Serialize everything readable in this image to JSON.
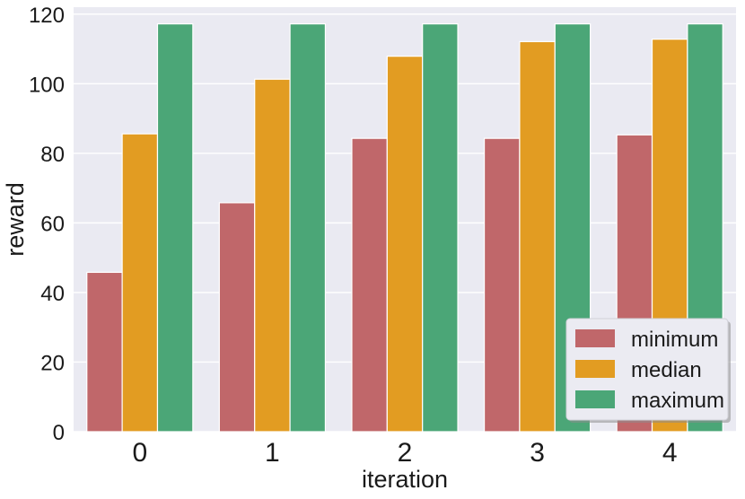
{
  "chart_data": {
    "type": "bar",
    "title": "",
    "xlabel": "iteration",
    "ylabel": "reward",
    "categories": [
      "0",
      "1",
      "2",
      "3",
      "4"
    ],
    "ylim": [
      0,
      122
    ],
    "yticks": [
      0,
      20,
      40,
      60,
      80,
      100,
      120
    ],
    "grid": true,
    "legend_position": "bottom-right",
    "series": [
      {
        "name": "minimum",
        "color": "#c0676a",
        "values": [
          45.8,
          65.8,
          84.3,
          84.3,
          85.3
        ]
      },
      {
        "name": "median",
        "color": "#e29c22",
        "values": [
          85.6,
          101.3,
          107.9,
          112.1,
          112.8
        ]
      },
      {
        "name": "maximum",
        "color": "#4ba677",
        "values": [
          117.2,
          117.2,
          117.2,
          117.2,
          117.2
        ]
      }
    ],
    "plot_background": "#eaeaf2"
  }
}
